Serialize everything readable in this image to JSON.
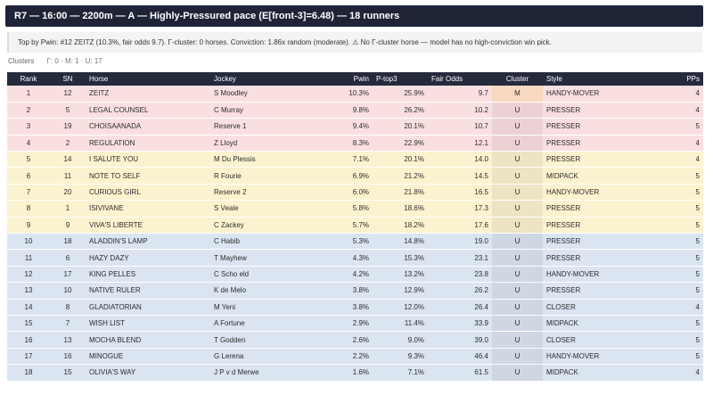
{
  "header": {
    "title": "R7 — 16:00 — 2200m — A — Highly-Pressured pace (E[front-3]=6.48) — 18 runners"
  },
  "summary": {
    "text": "Top by Pwin: #12 ZEITZ (10.3%, fair odds 9.7). Γ-cluster: 0 horses. Conviction: 1.86x random (moderate). ⚠ No Γ-cluster horse — model has no high-conviction win pick."
  },
  "clusters": {
    "label": "Clusters",
    "value": "Γ: 0 · M: 1 · U: 17"
  },
  "table": {
    "columns": [
      "Rank",
      "SN",
      "Horse",
      "Jockey",
      "Pwin",
      "P-top3",
      "Fair Odds",
      "Cluster",
      "Style",
      "PPs"
    ],
    "rows": [
      {
        "rank": "1",
        "sn": "12",
        "horse": "ZEITZ",
        "jockey": "S Moodley",
        "pwin": "10.3%",
        "ptop3": "25.9%",
        "odds": "9.7",
        "cluster": "M",
        "style": "HANDY-MOVER",
        "pps": "4",
        "band": "top"
      },
      {
        "rank": "2",
        "sn": "5",
        "horse": "LEGAL COUNSEL",
        "jockey": "C Murray",
        "pwin": "9.8%",
        "ptop3": "26.2%",
        "odds": "10.2",
        "cluster": "U",
        "style": "PRESSER",
        "pps": "4",
        "band": "top"
      },
      {
        "rank": "3",
        "sn": "19",
        "horse": "CHOISAANADA",
        "jockey": "Reserve 1",
        "pwin": "9.4%",
        "ptop3": "20.1%",
        "odds": "10.7",
        "cluster": "U",
        "style": "PRESSER",
        "pps": "5",
        "band": "top"
      },
      {
        "rank": "4",
        "sn": "2",
        "horse": "REGULATION",
        "jockey": "Z Lloyd",
        "pwin": "8.3%",
        "ptop3": "22.9%",
        "odds": "12.1",
        "cluster": "U",
        "style": "PRESSER",
        "pps": "4",
        "band": "top"
      },
      {
        "rank": "5",
        "sn": "14",
        "horse": "I SALUTE YOU",
        "jockey": "M Du Plessis",
        "pwin": "7.1%",
        "ptop3": "20.1%",
        "odds": "14.0",
        "cluster": "U",
        "style": "PRESSER",
        "pps": "4",
        "band": "mid"
      },
      {
        "rank": "6",
        "sn": "11",
        "horse": "NOTE TO SELF",
        "jockey": "R Fourie",
        "pwin": "6.9%",
        "ptop3": "21.2%",
        "odds": "14.5",
        "cluster": "U",
        "style": "MIDPACK",
        "pps": "5",
        "band": "mid"
      },
      {
        "rank": "7",
        "sn": "20",
        "horse": "CURIOUS GIRL",
        "jockey": "Reserve 2",
        "pwin": "6.0%",
        "ptop3": "21.8%",
        "odds": "16.5",
        "cluster": "U",
        "style": "HANDY-MOVER",
        "pps": "5",
        "band": "mid"
      },
      {
        "rank": "8",
        "sn": "1",
        "horse": "ISIVIVANE",
        "jockey": "S Veale",
        "pwin": "5.8%",
        "ptop3": "18.6%",
        "odds": "17.3",
        "cluster": "U",
        "style": "PRESSER",
        "pps": "5",
        "band": "mid"
      },
      {
        "rank": "9",
        "sn": "9",
        "horse": "VIVA'S LIBERTE",
        "jockey": "C Zackey",
        "pwin": "5.7%",
        "ptop3": "18.2%",
        "odds": "17.6",
        "cluster": "U",
        "style": "PRESSER",
        "pps": "5",
        "band": "mid"
      },
      {
        "rank": "10",
        "sn": "18",
        "horse": "ALADDIN'S LAMP",
        "jockey": "C Habib",
        "pwin": "5.3%",
        "ptop3": "14.8%",
        "odds": "19.0",
        "cluster": "U",
        "style": "PRESSER",
        "pps": "5",
        "band": "low"
      },
      {
        "rank": "11",
        "sn": "6",
        "horse": "HAZY DAZY",
        "jockey": "T Mayhew",
        "pwin": "4.3%",
        "ptop3": "15.3%",
        "odds": "23.1",
        "cluster": "U",
        "style": "PRESSER",
        "pps": "5",
        "band": "low"
      },
      {
        "rank": "12",
        "sn": "17",
        "horse": "KING PELLES",
        "jockey": "C Scho eld",
        "pwin": "4.2%",
        "ptop3": "13.2%",
        "odds": "23.8",
        "cluster": "U",
        "style": "HANDY-MOVER",
        "pps": "5",
        "band": "low"
      },
      {
        "rank": "13",
        "sn": "10",
        "horse": "NATIVE RULER",
        "jockey": "K de Melo",
        "pwin": "3.8%",
        "ptop3": "12.9%",
        "odds": "26.2",
        "cluster": "U",
        "style": "PRESSER",
        "pps": "5",
        "band": "low"
      },
      {
        "rank": "14",
        "sn": "8",
        "horse": "GLADIATORIAN",
        "jockey": "M Yeni",
        "pwin": "3.8%",
        "ptop3": "12.0%",
        "odds": "26.4",
        "cluster": "U",
        "style": "CLOSER",
        "pps": "4",
        "band": "low"
      },
      {
        "rank": "15",
        "sn": "7",
        "horse": "WISH LIST",
        "jockey": "A Fortune",
        "pwin": "2.9%",
        "ptop3": "11.4%",
        "odds": "33.9",
        "cluster": "U",
        "style": "MIDPACK",
        "pps": "5",
        "band": "low"
      },
      {
        "rank": "16",
        "sn": "13",
        "horse": "MOCHA BLEND",
        "jockey": "T Godden",
        "pwin": "2.6%",
        "ptop3": "9.0%",
        "odds": "39.0",
        "cluster": "U",
        "style": "CLOSER",
        "pps": "5",
        "band": "low"
      },
      {
        "rank": "17",
        "sn": "16",
        "horse": "MINOGUE",
        "jockey": "G Lerena",
        "pwin": "2.2%",
        "ptop3": "9.3%",
        "odds": "46.4",
        "cluster": "U",
        "style": "HANDY-MOVER",
        "pps": "5",
        "band": "low"
      },
      {
        "rank": "18",
        "sn": "15",
        "horse": "OLIVIA'S WAY",
        "jockey": "J P v d Merwe",
        "pwin": "1.6%",
        "ptop3": "7.1%",
        "odds": "61.5",
        "cluster": "U",
        "style": "MIDPACK",
        "pps": "4",
        "band": "low"
      }
    ]
  },
  "colors": {
    "header_bg": "#1f2336",
    "top_band": "#fadfe1",
    "mid_band": "#fbf3cf",
    "low_band": "#dbe5f1",
    "cluster_m": "#f8d9bf"
  }
}
